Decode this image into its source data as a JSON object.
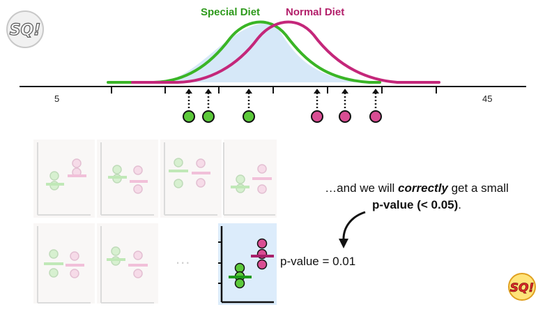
{
  "legend": {
    "special_diet": "Special Diet",
    "normal_diet": "Normal Diet"
  },
  "axis": {
    "min_label": "5",
    "max_label": "45"
  },
  "caption": {
    "line1_prefix": "…and we will ",
    "line1_emphasis": "correctly",
    "line1_suffix": " get a small",
    "line2_bold": "p-value (< 0.05)",
    "line2_end": "."
  },
  "result": {
    "pvalue_text": "p-value = 0.01"
  },
  "ellipsis": "...",
  "logo": {
    "text": "StatQuest SQ!"
  },
  "colors": {
    "special": "#3ab526",
    "normal": "#c4277a",
    "special_fill": "#5cc93a",
    "normal_fill": "#d94d93",
    "overlap_fill": "#d6e8f8",
    "highlight_panel": "#dcecfb",
    "faded_panel": "#f6f3f1"
  },
  "samples": {
    "special": [
      15,
      16,
      19
    ],
    "normal": [
      23,
      25,
      27
    ]
  }
}
